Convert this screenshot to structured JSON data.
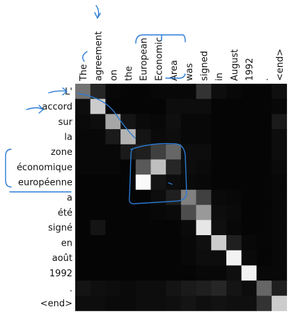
{
  "chart_data": {
    "type": "heatmap",
    "title": "",
    "columns": [
      "The",
      "agreement",
      "on",
      "the",
      "European",
      "Economic",
      "Area",
      "was",
      "signed",
      "in",
      "August",
      "1992",
      ".",
      "<end>"
    ],
    "rows": [
      "L'",
      "accord",
      "sur",
      "la",
      "zone",
      "économique",
      "européenne",
      "a",
      "été",
      "signé",
      "en",
      "août",
      "1992",
      ".",
      "<end>"
    ],
    "value_range": [
      0,
      1
    ],
    "colormap": "grayscale (black = 0, white = 1)",
    "matrix": [
      [
        0.45,
        0.15,
        0.03,
        0.02,
        0.02,
        0.03,
        0.03,
        0.03,
        0.2,
        0.05,
        0.03,
        0.02,
        0.02,
        0.06
      ],
      [
        0.05,
        0.8,
        0.02,
        0.02,
        0.02,
        0.02,
        0.05,
        0.05,
        0.05,
        0.02,
        0.02,
        0.02,
        0.02,
        0.03
      ],
      [
        0.04,
        0.05,
        0.65,
        0.08,
        0.04,
        0.03,
        0.06,
        0.03,
        0.03,
        0.02,
        0.02,
        0.02,
        0.02,
        0.1
      ],
      [
        0.03,
        0.03,
        0.1,
        0.7,
        0.08,
        0.04,
        0.05,
        0.03,
        0.03,
        0.02,
        0.02,
        0.02,
        0.02,
        0.05
      ],
      [
        0.03,
        0.03,
        0.03,
        0.1,
        0.12,
        0.25,
        0.4,
        0.05,
        0.05,
        0.02,
        0.02,
        0.02,
        0.02,
        0.05
      ],
      [
        0.03,
        0.03,
        0.03,
        0.02,
        0.35,
        0.75,
        0.15,
        0.05,
        0.04,
        0.02,
        0.02,
        0.02,
        0.02,
        0.04
      ],
      [
        0.02,
        0.02,
        0.02,
        0.02,
        0.98,
        0.08,
        0.05,
        0.04,
        0.03,
        0.02,
        0.02,
        0.02,
        0.02,
        0.03
      ],
      [
        0.02,
        0.02,
        0.02,
        0.02,
        0.02,
        0.05,
        0.12,
        0.5,
        0.25,
        0.04,
        0.03,
        0.02,
        0.02,
        0.03
      ],
      [
        0.02,
        0.02,
        0.02,
        0.02,
        0.02,
        0.03,
        0.04,
        0.3,
        0.6,
        0.05,
        0.04,
        0.02,
        0.02,
        0.03
      ],
      [
        0.02,
        0.08,
        0.02,
        0.02,
        0.02,
        0.02,
        0.02,
        0.04,
        0.9,
        0.06,
        0.03,
        0.02,
        0.02,
        0.03
      ],
      [
        0.02,
        0.02,
        0.02,
        0.02,
        0.02,
        0.02,
        0.02,
        0.03,
        0.06,
        0.8,
        0.12,
        0.03,
        0.02,
        0.03
      ],
      [
        0.02,
        0.02,
        0.02,
        0.02,
        0.02,
        0.02,
        0.02,
        0.03,
        0.05,
        0.05,
        0.95,
        0.04,
        0.02,
        0.03
      ],
      [
        0.02,
        0.02,
        0.02,
        0.02,
        0.02,
        0.02,
        0.02,
        0.02,
        0.03,
        0.03,
        0.06,
        0.95,
        0.03,
        0.03
      ],
      [
        0.08,
        0.06,
        0.05,
        0.04,
        0.05,
        0.05,
        0.08,
        0.1,
        0.12,
        0.15,
        0.08,
        0.05,
        0.4,
        0.12
      ],
      [
        0.05,
        0.05,
        0.04,
        0.04,
        0.05,
        0.05,
        0.06,
        0.08,
        0.06,
        0.07,
        0.06,
        0.06,
        0.2,
        0.8
      ]
    ]
  },
  "annotation_color": "#2a7bd5"
}
